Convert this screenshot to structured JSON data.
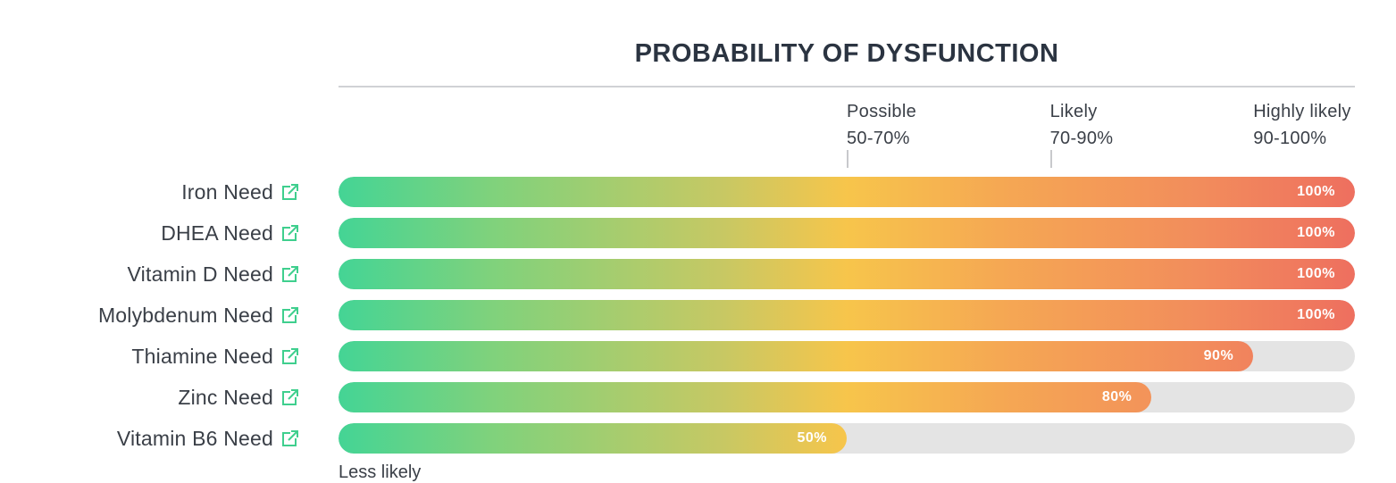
{
  "chart_data": {
    "type": "bar",
    "title": "PROBABILITY OF DYSFUNCTION",
    "xlim": [
      0,
      100
    ],
    "legend": [
      {
        "label": "Possible",
        "range": "50-70%",
        "position": 50
      },
      {
        "label": "Likely",
        "range": "70-90%",
        "position": 70
      },
      {
        "label": "Highly likely",
        "range": "90-100%",
        "position": 90
      }
    ],
    "categories": [
      "Iron Need",
      "DHEA Need",
      "Vitamin D Need",
      "Molybdenum Need",
      "Thiamine Need",
      "Zinc Need",
      "Vitamin B6 Need"
    ],
    "values": [
      100,
      100,
      100,
      100,
      90,
      80,
      50
    ],
    "value_labels": [
      "100%",
      "100%",
      "100%",
      "100%",
      "90%",
      "80%",
      "50%"
    ],
    "footnote": "Less likely"
  },
  "colors": {
    "gradient": [
      "#44d495",
      "#7fd27c",
      "#c8c863",
      "#f7c54b",
      "#f5a853",
      "#f28c5c",
      "#ee6f5f"
    ],
    "track": "#e4e4e4",
    "link_icon": "#3fcf8e",
    "title": "#2b3441"
  },
  "icons": {
    "row_link": "external-link-icon"
  }
}
